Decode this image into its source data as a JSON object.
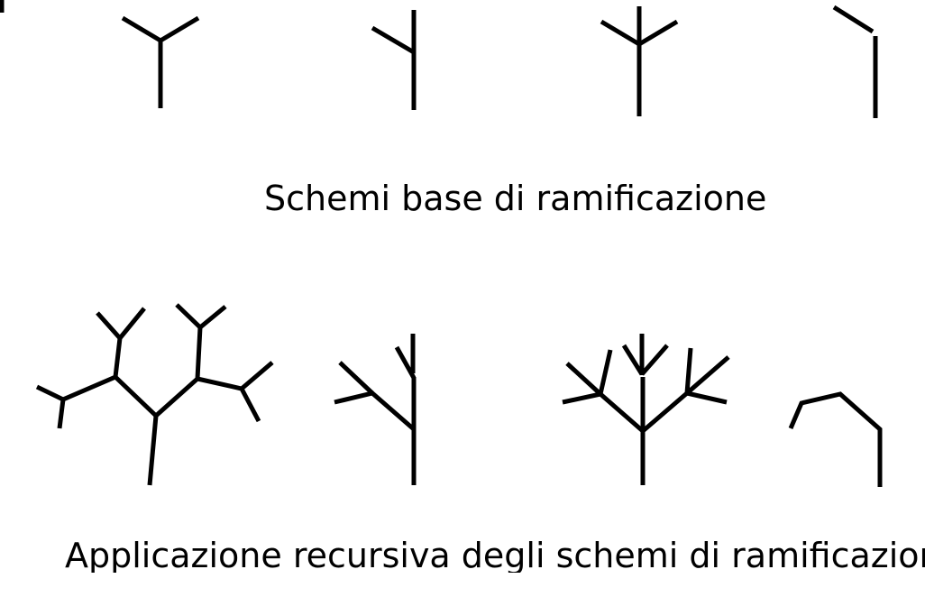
{
  "captions": {
    "basic_patterns": "Schemi base di ramificazione",
    "recursive_application": "Applicazione recursiva degli schemi di ramificazione"
  },
  "colors": {
    "ink": "#000000",
    "background": "#ffffff"
  }
}
